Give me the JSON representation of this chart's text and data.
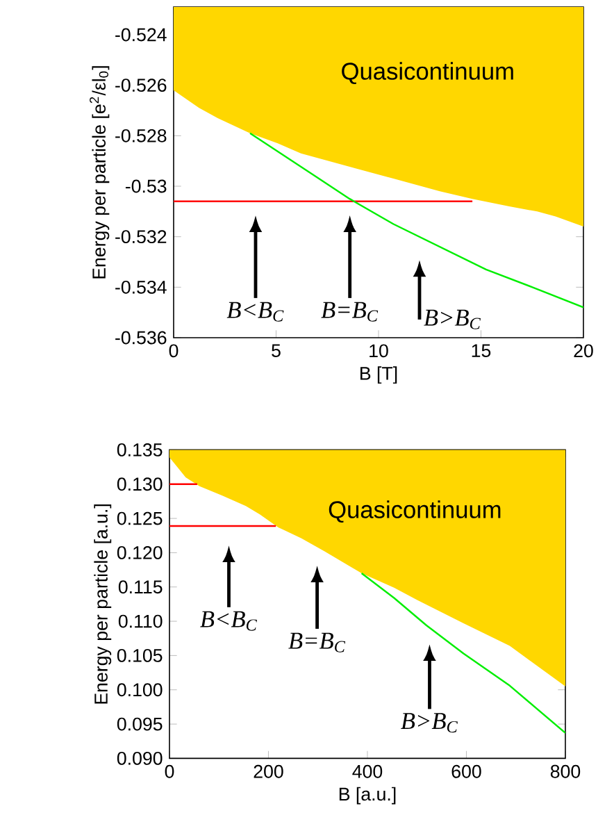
{
  "chart_data": [
    {
      "type": "line",
      "xlabel": "B [T]",
      "ylabel": "Energy per particle [e$^{2}$/εl$_{0}$]",
      "xlim": [
        0,
        20
      ],
      "ylim": [
        -0.536,
        -0.5229
      ],
      "xticks": [
        0,
        5,
        10,
        15,
        20
      ],
      "yticks": [
        -0.536,
        -0.534,
        -0.532,
        -0.53,
        -0.528,
        -0.526,
        -0.524
      ],
      "series": [
        {
          "type": "area",
          "name": "Quasicontinuum",
          "color": "#ffd700",
          "x": [
            0,
            1.24,
            2.15,
            3.73,
            5.08,
            6.21,
            8.47,
            10.73,
            12.99,
            14.58,
            16.38,
            17.74,
            18.64,
            20
          ],
          "values": [
            -0.5262,
            -0.5269,
            -0.5273,
            -0.5279,
            -0.5283,
            -0.5287,
            -0.5292,
            -0.5297,
            -0.5302,
            -0.5305,
            -0.5308,
            -0.531,
            -0.5312,
            -0.5316
          ]
        },
        {
          "color": "#ff0000",
          "x": [
            0,
            14.58
          ],
          "values": [
            -0.5306,
            -0.5306
          ]
        },
        {
          "color": "#00ee00",
          "x": [
            3.73,
            8.59,
            10.73,
            12.99,
            15.25,
            17.51,
            20
          ],
          "values": [
            -0.5279,
            -0.5305,
            -0.5315,
            -0.5324,
            -0.5333,
            -0.534,
            -0.5348
          ]
        }
      ],
      "annotations": [
        "B<B$_{C}$",
        "B=B$_{C}$",
        "B>B$_{C}$"
      ]
    },
    {
      "type": "line",
      "xlabel": "B [a.u.]",
      "ylabel": "Energy per particle [a.u.]",
      "xlim": [
        0,
        800
      ],
      "ylim": [
        0.09,
        0.135
      ],
      "xticks": [
        0,
        200,
        400,
        600,
        800
      ],
      "yticks": [
        {
          "value": 0.09,
          "label": "0.090"
        },
        0.095,
        {
          "value": 0.1,
          "label": "0.100"
        },
        0.105,
        {
          "value": 0.11,
          "label": "0.110"
        },
        0.115,
        {
          "value": 0.12,
          "label": "0.120"
        },
        0.125,
        {
          "value": 0.13,
          "label": "0.130"
        },
        0.135
      ],
      "series": [
        {
          "type": "area",
          "name": "Quasicontinuum",
          "color": "#ffd700",
          "x": [
            0,
            32.7,
            60.8,
            107.6,
            154.4,
            182.5,
            219.9,
            266.7,
            313.5,
            388.3,
            453.8,
            500.6,
            594.2,
            687.7,
            800
          ],
          "values": [
            0.1339,
            0.131,
            0.1297,
            0.1283,
            0.1268,
            0.1256,
            0.1237,
            0.1221,
            0.1202,
            0.117,
            0.1149,
            0.1131,
            0.1097,
            0.1064,
            0.1005
          ]
        },
        {
          "color": "#ff0000",
          "x": [
            0,
            56
          ],
          "values": [
            0.13,
            0.13
          ]
        },
        {
          "color": "#ff0000",
          "x": [
            0,
            215
          ],
          "values": [
            0.1239,
            0.1239
          ]
        },
        {
          "color": "#00ee00",
          "x": [
            388.3,
            453.8,
            519.3,
            594.2,
            687.7,
            800
          ],
          "values": [
            0.117,
            0.1134,
            0.1094,
            0.1053,
            0.1006,
            0.0937
          ]
        }
      ],
      "annotations": [
        "B<B$_{C}$",
        "B=B$_{C}$",
        "B>B$_{C}$"
      ]
    }
  ]
}
